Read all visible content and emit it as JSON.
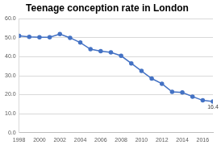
{
  "chart_data": {
    "type": "line",
    "title": "Teenage conception rate in London",
    "categories": [
      "1998",
      null,
      "2000",
      null,
      "2002",
      null,
      "2004",
      null,
      "2006",
      null,
      "2008",
      null,
      "2010",
      null,
      "2012",
      null,
      "2014",
      null,
      "2016",
      null
    ],
    "values": [
      51.0,
      50.5,
      50.3,
      50.3,
      52.0,
      50.0,
      47.5,
      44.0,
      43.0,
      42.3,
      40.5,
      36.5,
      32.5,
      28.5,
      25.8,
      21.5,
      21.2,
      19.0,
      17.0,
      16.4
    ],
    "value_labels": [
      null,
      null,
      null,
      null,
      null,
      null,
      null,
      null,
      null,
      null,
      null,
      null,
      null,
      null,
      null,
      null,
      null,
      null,
      null,
      "16.4"
    ],
    "color": "#4472c4",
    "marker": "circle",
    "line_style": "solid",
    "ylim": [
      0,
      60
    ],
    "yticks": [
      {
        "value": 0,
        "label": "0.0"
      },
      {
        "value": 10,
        "label": "10.0"
      },
      {
        "value": 20,
        "label": "20.0"
      },
      {
        "value": 30,
        "label": "30.0"
      },
      {
        "value": 40,
        "label": "40.0"
      },
      {
        "value": 50,
        "label": "50.0"
      },
      {
        "value": 60,
        "label": "60.0"
      }
    ],
    "grid": true
  }
}
